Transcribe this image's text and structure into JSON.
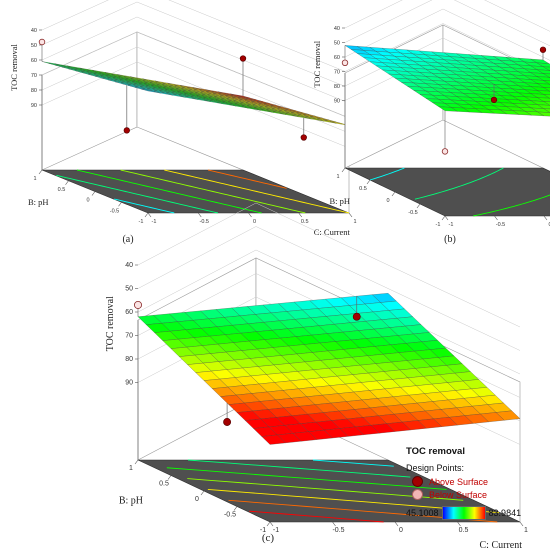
{
  "chart_data": [
    {
      "type": "surface3d",
      "panel_label": "(a)",
      "zlabel": "TOC removal",
      "xlabel": "C: Current",
      "ylabel": "B: pH",
      "x_ticks": [
        "-1",
        "-0.5",
        "0",
        "0.5",
        "1"
      ],
      "y_ticks": [
        "-1",
        "-0.5",
        "0",
        "0.5",
        "1"
      ],
      "z_ticks": [
        "40",
        "50",
        "60",
        "70",
        "80",
        "90"
      ],
      "zlim": [
        40,
        90
      ],
      "corners": {
        "pH_low_current_low": 52,
        "pH_low_current_high": 75,
        "pH_high_current_low": 61,
        "pH_high_current_high": 84
      },
      "points": [
        {
          "pH": -0.6,
          "current": -1,
          "value": 84,
          "position": "above"
        },
        {
          "pH": -1,
          "current": 0.55,
          "value": 83,
          "position": "above"
        },
        {
          "pH": 1,
          "current": 1,
          "value": 59,
          "position": "above"
        },
        {
          "pH": 1,
          "current": -1,
          "value": 48,
          "position": "below"
        }
      ]
    },
    {
      "type": "surface3d",
      "panel_label": "(b)",
      "zlabel": "TOC removal",
      "xlabel": "C: Current",
      "ylabel": "B: pH",
      "x_ticks": [
        "-1",
        "-0.5",
        "0",
        "0.5",
        "1"
      ],
      "y_ticks": [
        "-1",
        "-0.5",
        "0",
        "0.5",
        "1"
      ],
      "z_ticks": [
        "40",
        "50",
        "60",
        "70",
        "80",
        "90"
      ],
      "zlim": [
        40,
        90
      ],
      "corners": {
        "pH_low_current_low": 64,
        "pH_low_current_high": 71,
        "pH_high_current_low": 52,
        "pH_high_current_high": 62
      },
      "points": [
        {
          "pH": -1,
          "current": -1,
          "value": 92,
          "position": "below"
        },
        {
          "pH": 0,
          "current": 0,
          "value": 73,
          "position": "above"
        },
        {
          "pH": 1,
          "current": 1,
          "value": 55,
          "position": "above"
        },
        {
          "pH": 1,
          "current": -1,
          "value": 64,
          "position": "below"
        },
        {
          "pH": -1,
          "current": 1,
          "value": 72,
          "position": "below"
        }
      ]
    },
    {
      "type": "surface3d",
      "panel_label": "(c)",
      "zlabel": "TOC removal",
      "xlabel": "C: Current",
      "ylabel": "B: pH",
      "x_ticks": [
        "-1",
        "-0.5",
        "0",
        "0.5",
        "1"
      ],
      "y_ticks": [
        "-1",
        "-0.5",
        "0",
        "0.5",
        "1"
      ],
      "z_ticks": [
        "40",
        "50",
        "60",
        "70",
        "80",
        "90"
      ],
      "zlim": [
        40,
        90
      ],
      "corners": {
        "pH_low_current_low": 90,
        "pH_low_current_high": 79,
        "pH_high_current_low": 62,
        "pH_high_current_high": 52
      },
      "points": [
        {
          "pH": -0.35,
          "current": -1,
          "value": 89,
          "position": "above"
        },
        {
          "pH": 1,
          "current": 0.75,
          "value": 62,
          "position": "above"
        },
        {
          "pH": 1,
          "current": -1,
          "value": 57,
          "position": "below"
        }
      ]
    }
  ],
  "legend": {
    "title": "TOC removal",
    "subtitle": "Design Points:",
    "above_label": "Above Surface",
    "below_label": "Below Surface",
    "min": "45.1008",
    "max": "83.9841",
    "colors": [
      "#0000ff",
      "#00ffff",
      "#00ff00",
      "#ffff00",
      "#ff0000"
    ]
  }
}
